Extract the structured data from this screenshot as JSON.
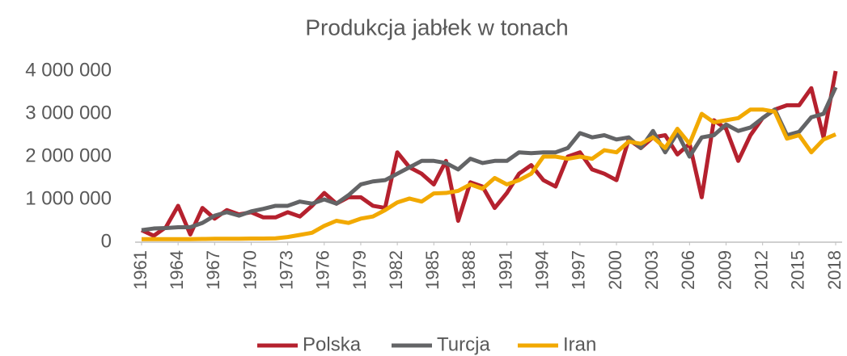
{
  "chart_data": {
    "type": "line",
    "title": "Produkcja jabłek w tonach",
    "x": [
      1961,
      1962,
      1963,
      1964,
      1965,
      1966,
      1967,
      1968,
      1969,
      1970,
      1971,
      1972,
      1973,
      1974,
      1975,
      1976,
      1977,
      1978,
      1979,
      1980,
      1981,
      1982,
      1983,
      1984,
      1985,
      1986,
      1987,
      1988,
      1989,
      1990,
      1991,
      1992,
      1993,
      1994,
      1995,
      1996,
      1997,
      1998,
      1999,
      2000,
      2001,
      2002,
      2003,
      2004,
      2005,
      2006,
      2007,
      2008,
      2009,
      2010,
      2011,
      2012,
      2013,
      2014,
      2015,
      2016,
      2017,
      2018
    ],
    "xlim": [
      1961,
      2018
    ],
    "xticks": [
      1961,
      1964,
      1967,
      1970,
      1973,
      1976,
      1979,
      1982,
      1985,
      1988,
      1991,
      1994,
      1997,
      2000,
      2003,
      2006,
      2009,
      2012,
      2015,
      2018
    ],
    "ylim": [
      0,
      4000000
    ],
    "yticks": [
      0,
      {
        "value": 1000000,
        "label": "1 000 000"
      },
      {
        "value": 2000000,
        "label": "2 000 000"
      },
      {
        "value": 3000000,
        "label": "3 000 000"
      },
      {
        "value": 4000000,
        "label": "4 000 000"
      }
    ],
    "grid": false,
    "legend": "bottom",
    "series": [
      {
        "name": "Polska",
        "color": "#b5212e",
        "values": [
          280000,
          150000,
          350000,
          850000,
          180000,
          800000,
          550000,
          750000,
          650000,
          700000,
          580000,
          580000,
          700000,
          600000,
          850000,
          1150000,
          900000,
          1050000,
          1050000,
          850000,
          800000,
          2100000,
          1750000,
          1600000,
          1350000,
          1900000,
          500000,
          1400000,
          1300000,
          800000,
          1150000,
          1600000,
          1800000,
          1450000,
          1300000,
          2000000,
          2100000,
          1700000,
          1600000,
          1450000,
          2400000,
          2200000,
          2450000,
          2500000,
          2050000,
          2300000,
          1050000,
          2850000,
          2650000,
          1900000,
          2500000,
          2900000,
          3100000,
          3200000,
          3200000,
          3600000,
          2450000,
          4000000
        ]
      },
      {
        "name": "Turcja",
        "color": "#636466",
        "values": [
          280000,
          320000,
          330000,
          350000,
          350000,
          450000,
          620000,
          700000,
          620000,
          720000,
          780000,
          850000,
          850000,
          950000,
          900000,
          1000000,
          900000,
          1100000,
          1350000,
          1420000,
          1450000,
          1600000,
          1750000,
          1900000,
          1900000,
          1850000,
          1700000,
          1950000,
          1850000,
          1900000,
          1900000,
          2100000,
          2080000,
          2100000,
          2100000,
          2200000,
          2550000,
          2450000,
          2500000,
          2400000,
          2450000,
          2200000,
          2600000,
          2100000,
          2550000,
          2000000,
          2450000,
          2500000,
          2750000,
          2600000,
          2680000,
          2900000,
          3100000,
          2500000,
          2580000,
          2920000,
          3000000,
          3620000
        ]
      },
      {
        "name": "Iran",
        "color": "#f2a900",
        "values": [
          70000,
          70000,
          70000,
          70000,
          70000,
          75000,
          80000,
          80000,
          80000,
          85000,
          85000,
          90000,
          120000,
          170000,
          220000,
          380000,
          500000,
          450000,
          550000,
          600000,
          750000,
          930000,
          1020000,
          950000,
          1140000,
          1150000,
          1200000,
          1350000,
          1250000,
          1500000,
          1350000,
          1450000,
          1600000,
          2000000,
          2000000,
          1950000,
          2000000,
          1950000,
          2150000,
          2100000,
          2350000,
          2300000,
          2450000,
          2200000,
          2650000,
          2300000,
          3000000,
          2800000,
          2850000,
          2900000,
          3100000,
          3100000,
          3050000,
          2420000,
          2500000,
          2100000,
          2400000,
          2520000
        ]
      }
    ]
  }
}
